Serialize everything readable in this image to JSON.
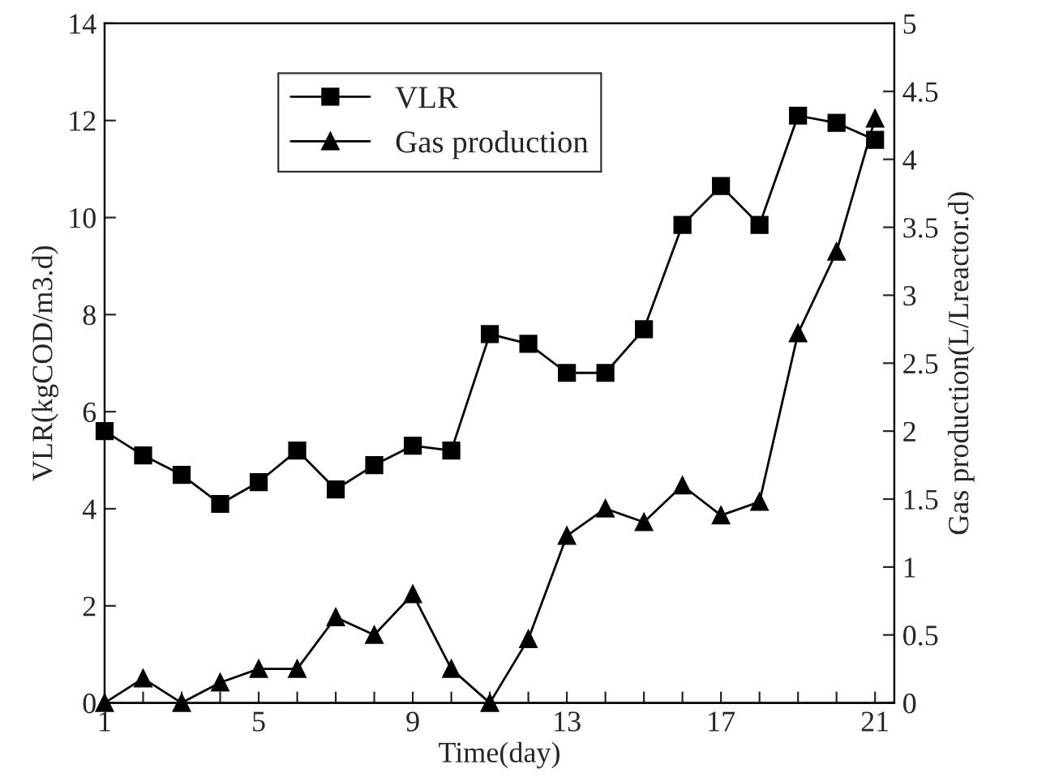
{
  "chart_data": {
    "type": "line",
    "xlabel": "Time(day)",
    "ylabel": "VLR(kgCOD/m3.d)",
    "y2label": "Gas production(L/Lreactor.d)",
    "x": [
      1,
      2,
      3,
      4,
      5,
      6,
      7,
      8,
      9,
      10,
      11,
      12,
      13,
      14,
      15,
      16,
      17,
      18,
      19,
      20,
      21
    ],
    "series": [
      {
        "name": "VLR",
        "color": "#000000",
        "marker": "square",
        "values": [
          5.6,
          5.1,
          4.7,
          4.1,
          4.55,
          5.2,
          4.4,
          4.9,
          5.3,
          5.2,
          7.6,
          7.4,
          6.8,
          6.8,
          7.7,
          9.85,
          10.65,
          9.85,
          12.1,
          11.95,
          11.6
        ]
      },
      {
        "name": "Gas production",
        "color": "#000000",
        "marker": "triangle",
        "axis": "y2",
        "values": [
          0,
          0.18,
          0,
          0.15,
          0.25,
          0.25,
          0.63,
          0.5,
          0.8,
          0.25,
          0,
          0.47,
          1.23,
          1.43,
          1.33,
          1.6,
          1.38,
          1.48,
          2.72,
          3.32,
          4.3
        ]
      }
    ],
    "xlim": [
      1,
      21.5
    ],
    "xticks": [
      1,
      {
        "value": 2,
        "label": null
      },
      {
        "value": 3,
        "label": null
      },
      {
        "value": 4,
        "label": null
      },
      5,
      {
        "value": 6,
        "label": null
      },
      {
        "value": 7,
        "label": null
      },
      {
        "value": 8,
        "label": null
      },
      9,
      {
        "value": 10,
        "label": null
      },
      {
        "value": 11,
        "label": null
      },
      {
        "value": 12,
        "label": null
      },
      13,
      {
        "value": 14,
        "label": null
      },
      {
        "value": 15,
        "label": null
      },
      {
        "value": 16,
        "label": null
      },
      17,
      {
        "value": 18,
        "label": null
      },
      {
        "value": 19,
        "label": null
      },
      {
        "value": 20,
        "label": null
      },
      21
    ],
    "ylim": [
      0,
      14
    ],
    "yticks": [
      0,
      2,
      4,
      6,
      8,
      10,
      12,
      14
    ],
    "y2lim": [
      0,
      5
    ],
    "y2ticks": [
      0,
      0.5,
      1,
      1.5,
      2,
      2.5,
      3,
      3.5,
      4,
      4.5,
      5
    ],
    "legend": "top left",
    "grid": false,
    "line_style": "solid"
  }
}
